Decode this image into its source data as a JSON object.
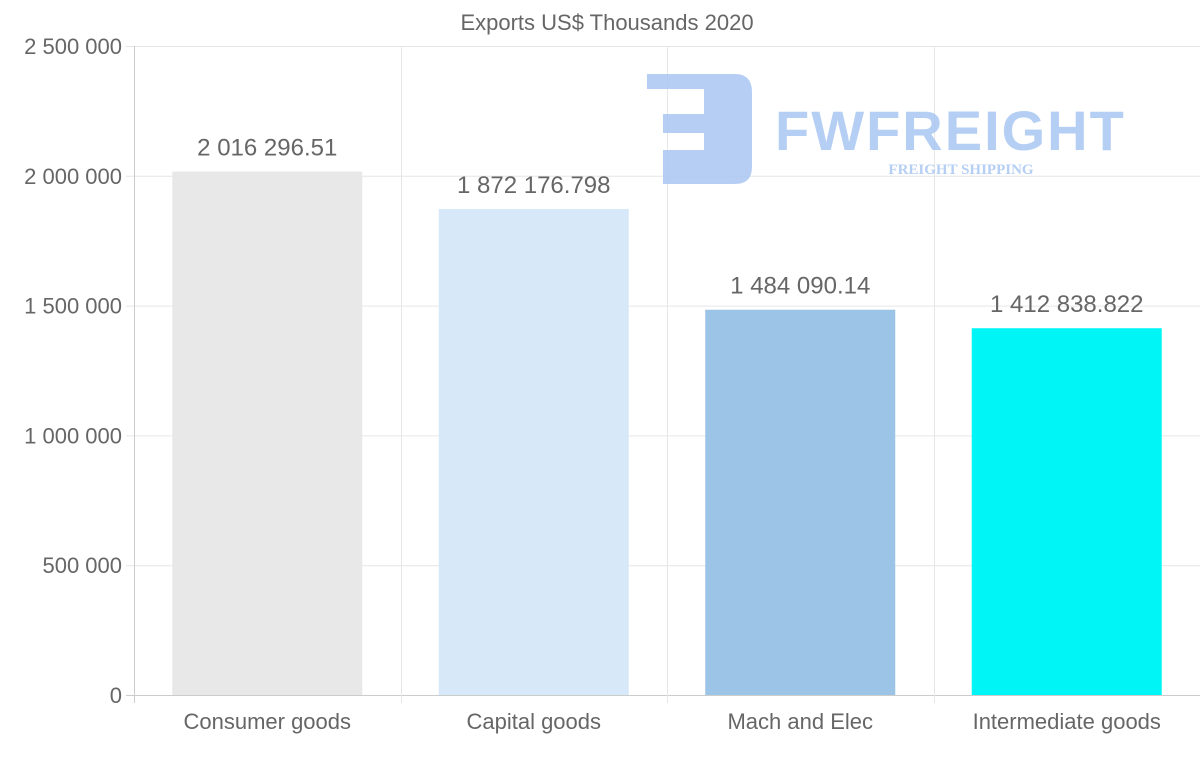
{
  "chart_data": {
    "type": "bar",
    "title": "Exports US$ Thousands 2020",
    "xlabel": "",
    "ylabel": "",
    "categories": [
      "Consumer goods",
      "Capital goods",
      "Mach and Elec",
      "Intermediate goods"
    ],
    "values": [
      2016296.51,
      1872176.798,
      1484090.14,
      1412838.822
    ],
    "value_labels": [
      "2 016 296.51",
      "1 872 176.798",
      "1 484 090.14",
      "1 412 838.822"
    ],
    "colors": [
      "#e8e8e8",
      "#d7e8f8",
      "#9bc4e6",
      "#00f6f6"
    ],
    "ylim": [
      0,
      2500000
    ],
    "yticks": [
      0,
      500000,
      1000000,
      1500000,
      2000000,
      2500000
    ],
    "ytick_labels": [
      "0",
      "500 000",
      "1 000 000",
      "1 500 000",
      "2 000 000",
      "2 500 000"
    ],
    "grid": true,
    "legend": "none"
  },
  "watermark": {
    "brand": "FWFREIGHT",
    "tagline": "FREIGHT SHIPPING",
    "color": "#a9c6f2"
  }
}
